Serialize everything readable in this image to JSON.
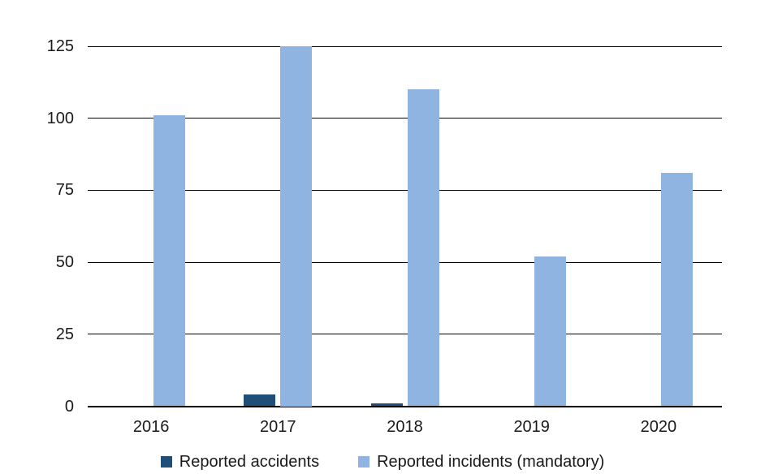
{
  "chart_data": {
    "type": "bar",
    "categories": [
      "2016",
      "2017",
      "2018",
      "2019",
      "2020"
    ],
    "series": [
      {
        "name": "Reported accidents",
        "color": "#1F4E79",
        "values": [
          0,
          4,
          1,
          0,
          0
        ]
      },
      {
        "name": "Reported incidents (mandatory)",
        "color": "#8FB4E2",
        "values": [
          101,
          125,
          110,
          52,
          81
        ]
      }
    ],
    "title": "",
    "xlabel": "",
    "ylabel": "",
    "ylim": [
      0,
      125
    ],
    "yticks": [
      0,
      25,
      50,
      75,
      100,
      125
    ],
    "grid": true,
    "gridline_color": "#000000",
    "background_color": "#ffffff",
    "text_color": "#1a1a1a",
    "legend_position": "bottom"
  }
}
